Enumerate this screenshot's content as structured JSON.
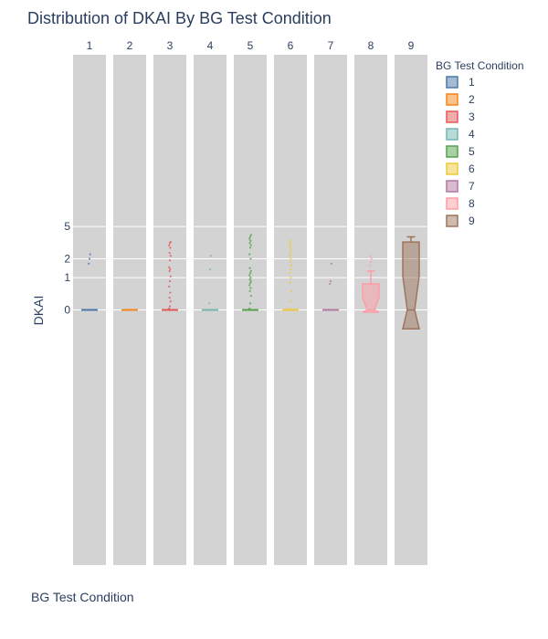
{
  "chart_data": {
    "type": "box",
    "title": "Distribution of DKAI By BG Test Condition",
    "xlabel": "BG Test Condition",
    "ylabel": "DKAI",
    "y_scale": "symlog",
    "y_ticks": [
      0,
      1,
      2,
      5
    ],
    "ylim": [
      -12,
      20
    ],
    "legend": {
      "title": "BG Test Condition",
      "placement": "right"
    },
    "facets": [
      "1",
      "2",
      "3",
      "4",
      "5",
      "6",
      "7",
      "8",
      "9"
    ],
    "series": [
      {
        "name": "1",
        "color": "#4c78a8",
        "box": {
          "q1": 0,
          "median": 0,
          "q3": 0,
          "lower_fence": 0,
          "upper_fence": 0
        },
        "outliers": [
          1.7,
          2.0,
          2.3
        ],
        "notched": false
      },
      {
        "name": "2",
        "color": "#f58518",
        "box": {
          "q1": 0,
          "median": 0,
          "q3": 0,
          "lower_fence": 0,
          "upper_fence": 0
        },
        "outliers": [],
        "notched": false
      },
      {
        "name": "3",
        "color": "#e45756",
        "box": {
          "q1": 0,
          "median": 0,
          "q3": 0,
          "lower_fence": 0,
          "upper_fence": 0
        },
        "outliers": [
          0.03,
          0.08,
          0.2,
          0.3,
          0.45,
          0.65,
          0.85,
          1.05,
          1.3,
          1.4,
          1.5,
          1.9,
          2.2,
          2.4,
          2.8,
          3.0,
          3.2,
          3.3
        ],
        "notched": false
      },
      {
        "name": "4",
        "color": "#72b7b2",
        "box": {
          "q1": 0,
          "median": 0,
          "q3": 0,
          "lower_fence": 0,
          "upper_fence": 0
        },
        "outliers": [
          0.15,
          1.4,
          2.2
        ],
        "notched": false
      },
      {
        "name": "5",
        "color": "#54a24b",
        "box": {
          "q1": 0,
          "median": 0,
          "q3": 0,
          "lower_fence": 0,
          "upper_fence": 0
        },
        "outliers": [
          0.03,
          0.15,
          0.35,
          0.5,
          0.6,
          0.7,
          0.78,
          0.85,
          0.92,
          1.0,
          1.1,
          1.2,
          1.3,
          1.45,
          2.0,
          2.3,
          2.8,
          3.0,
          3.2,
          3.4,
          3.6,
          3.8,
          4.0
        ],
        "notched": false
      },
      {
        "name": "6",
        "color": "#eeca3b",
        "box": {
          "q1": 0,
          "median": 0,
          "q3": 0,
          "lower_fence": 0,
          "upper_fence": 0
        },
        "outliers": [
          0.03,
          0.2,
          0.5,
          0.8,
          1.0,
          1.2,
          1.4,
          1.6,
          1.8,
          2.0,
          2.2,
          2.4,
          2.6,
          2.8,
          3.0,
          3.2,
          3.4
        ],
        "notched": false
      },
      {
        "name": "7",
        "color": "#b279a2",
        "box": {
          "q1": 0,
          "median": 0,
          "q3": 0,
          "lower_fence": 0,
          "upper_fence": 0
        },
        "outliers": [
          0.75,
          0.85,
          1.7
        ],
        "notched": false
      },
      {
        "name": "8",
        "color": "#ff9da6",
        "box": {
          "q1": -0.05,
          "median": 0,
          "q3": 0.75,
          "lower_fence": -0.05,
          "upper_fence": 1.3
        },
        "outliers": [
          1.6,
          1.8,
          2.0,
          2.2
        ],
        "notched": true
      },
      {
        "name": "9",
        "color": "#9d755d",
        "box": {
          "q1": -0.5,
          "median": 0,
          "q3": 3.3,
          "lower_fence": -0.5,
          "upper_fence": 3.8
        },
        "outliers": [],
        "notched": true
      }
    ]
  }
}
